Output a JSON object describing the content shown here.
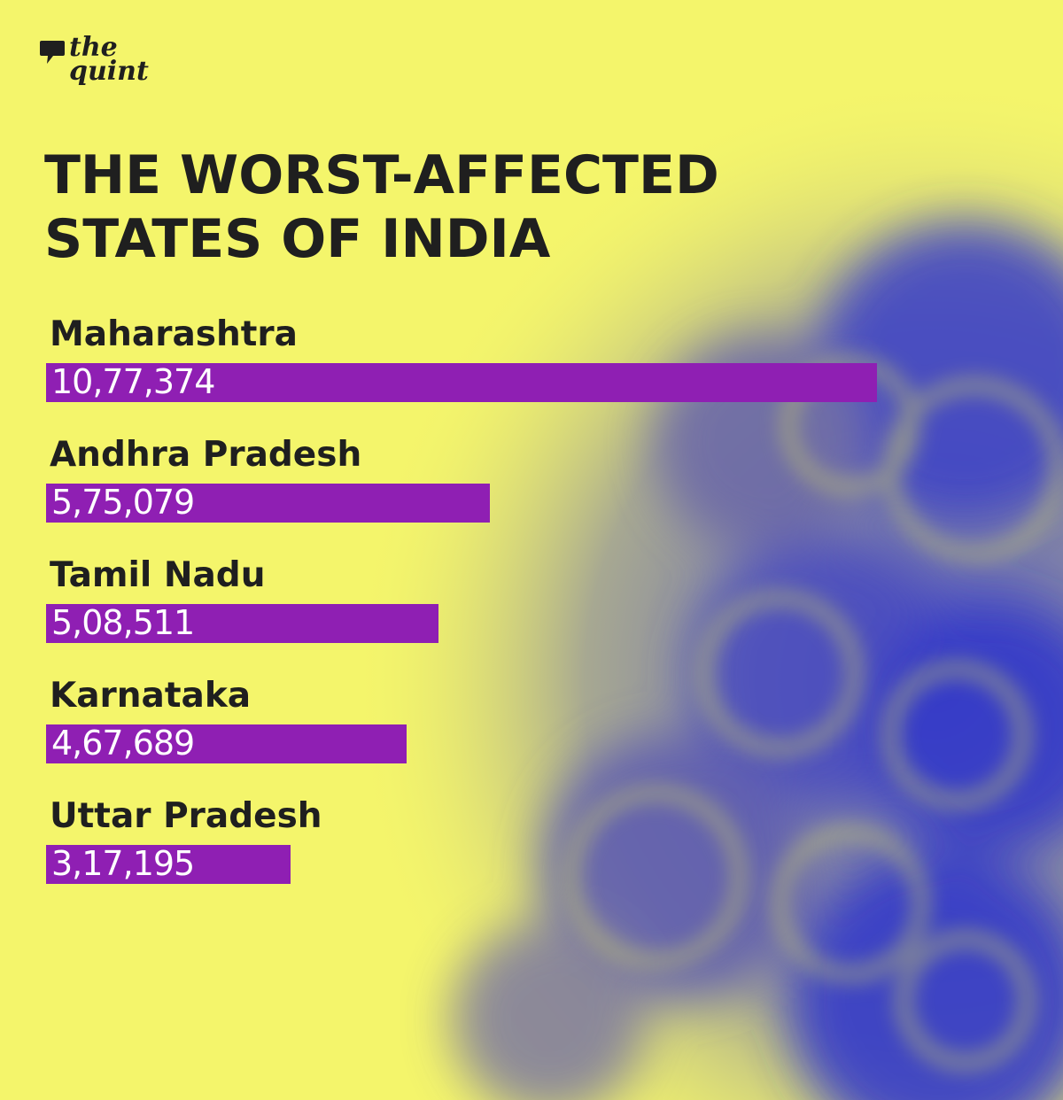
{
  "brand": {
    "line1": "the",
    "line2": "quint"
  },
  "chart_data": {
    "type": "bar",
    "orientation": "horizontal",
    "title": "THE WORST-AFFECTED STATES OF INDIA",
    "title_lines": [
      "THE WORST-AFFECTED",
      "STATES OF INDIA"
    ],
    "categories": [
      "Maharashtra",
      "Andhra Pradesh",
      "Tamil Nadu",
      "Karnataka",
      "Uttar Pradesh"
    ],
    "values": [
      1077374,
      575079,
      508511,
      467689,
      317195
    ],
    "value_labels": [
      "10,77,374",
      "5,75,079",
      "5,08,511",
      "4,67,689",
      "3,17,195"
    ],
    "xlabel": "",
    "ylabel": "",
    "grid": false,
    "colors": {
      "bar": "#8f1fb3",
      "background": "#f4f56b",
      "text": "#1f1f1f",
      "value_text": "#ffffff"
    }
  }
}
